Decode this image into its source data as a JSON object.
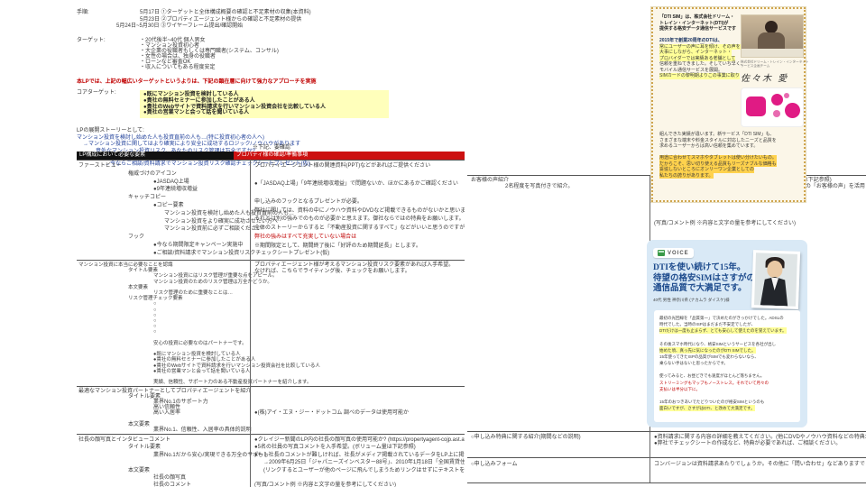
{
  "brief": {
    "schedule_label": "手順:",
    "schedule": [
      {
        "t": "5月17日 ①ターゲットと全体構成概要の確認と不足素材の収集(本資料)"
      },
      {
        "t": "5月23日 ②プロパティエージェント様からの確認と不足素材の提供"
      },
      {
        "t": "5月24日~5月30日 ③ワイヤーフレーム提出/確認開始",
        "c": "neg"
      }
    ],
    "target_label": "ターゲット:",
    "targets": [
      {
        "t": "・20代後半~40代 個人男女"
      },
      {
        "t": "・マンション投資初心者"
      },
      {
        "t": "・大企業の役職者もしくは専門職者(システム、コンサル)"
      },
      {
        "t": "・女性の場合は、独身の役職者"
      },
      {
        "t": "・ローンなど審査OK"
      },
      {
        "t": "・収入についてもある程度安定"
      }
    ],
    "warning": "本LPでは、上記の幅広いターゲットというよりは、下記の顕在層に向けて強力なアプローチを実施",
    "core_target_label": "コアターゲット:",
    "core_targets": [
      {
        "t": "●既にマンション投資を検討している人",
        "c": "b"
      },
      {
        "t": "●貴社の無料セミナーに参加したことがある人",
        "c": "b"
      },
      {
        "t": "●貴社のWebサイトで資料請求を行いマンション投資会社を比較している人",
        "c": "b"
      },
      {
        "t": "●貴社の営業マンと会って話を聞いている人",
        "c": "b"
      }
    ],
    "story_label": "LPの展開ストーリーとして:",
    "story": [
      {
        "t": "マンション投資を検討し始めた人も投資直前の人も…(特に投資初心者の人へ)",
        "c": "bl"
      },
      {
        "t": "→マンション投資に関してはより確実により安全に成功するロジック/ノウハウがあります",
        "c": "bl k1"
      },
      {
        "t": "→意外なマンション投資リスク、あなたのリスク管理は万全ですか?",
        "c": "bl k2"
      },
      {
        "t": "→リスクを最小限にするために/再確認するためにマンション投資前にプロパティエージェントにご相談/資料請求を",
        "c": "r k3"
      },
      {
        "t": "→今ならご相談/資料請求でマンション投資リスク確認チェックシートプレゼント(仮)",
        "c": "bl k4"
      }
    ]
  },
  "left_table": {
    "note": "※下記、要確認",
    "header": {
      "left": "LP構成において必要な要素",
      "right": "プロパティ様の確認/準備事項"
    },
    "rows": [
      {
        "left": [
          {
            "t": "ファーストビュー"
          },
          {
            "t": "権威づけのアイコン",
            "c": "i1"
          },
          {
            "t": "●JASDAQ上場",
            "c": "i2"
          },
          {
            "t": "●9年連続増収増益",
            "c": "i2"
          },
          {
            "t": "キャッチコピー",
            "c": "i1"
          },
          {
            "t": "●コピー要素",
            "c": "i2"
          },
          {
            "t": "マンション投資を検討し始めた人も投資直前の人も…",
            "c": "i3"
          },
          {
            "t": "マンション投資をより確実に成功させたい方へ",
            "c": "i3"
          },
          {
            "t": "マンション投資前に必ずご相談ください",
            "c": "i3"
          },
          {
            "t": "フック",
            "c": "i1"
          },
          {
            "t": "●今なら期間限定キャンペーン実施中",
            "c": "i2"
          },
          {
            "t": "●ご相談/資料請求でマンション投資リスクチェックシートプレゼント(仮)",
            "c": "i2"
          }
        ],
        "right": [
          {
            "t": "プロパティエージェント様の関連資料(PPT)などがあればご提供ください"
          },
          {
            "t": ""
          },
          {
            "t": "●「JASDAQ上場」「9年連続増収増益」で問題ないか、ほかにあるかご確認ください"
          },
          {
            "t": ""
          },
          {
            "t": "申し込みのフックとなるプレゼントが必要。"
          },
          {
            "t": "弊社に関しては、資料の中にノウハウ資料やDVDなど掲載できるものがないかと思いますが、"
          },
          {
            "t": "それとは別の強みでのものが必要かと思えます。御社ならではの特典をお願いします。"
          },
          {
            "t": "全体のストーリーからすると「不動産投資に関するすべて」などがいいと思うのですが…"
          },
          {
            "t": "弊社の強みはすべて充実していない場合は",
            "c": "r"
          },
          {
            "t": "※期間限定として、期間終了後に「好評のため期間延長」とします。"
          }
        ]
      },
      {
        "left": [
          {
            "t": "マンション投資に本当に必要なことを認識"
          },
          {
            "t": "タイトル要素",
            "c": "i1"
          },
          {
            "t": "マンション投資にはリスク管理が重要な点をアピール。",
            "c": "i2"
          },
          {
            "t": "マンション投資のためのリスク管理は万全かどうか。",
            "c": "i2"
          },
          {
            "t": "本文要素",
            "c": "i1"
          },
          {
            "t": "リスク管理のために重要なことは…",
            "c": "i2"
          },
          {
            "t": "リスク管理チェック要素",
            "c": "i1"
          },
          {
            "t": "○",
            "c": "i2"
          },
          {
            "t": "○",
            "c": "i2"
          },
          {
            "t": "○",
            "c": "i2"
          },
          {
            "t": "○",
            "c": "i2"
          },
          {
            "t": "○",
            "c": "i2"
          },
          {
            "t": "○",
            "c": "i2"
          },
          {
            "t": ""
          },
          {
            "t": "安心の投資に必要なのはパートナーです。",
            "c": "i2"
          },
          {
            "t": ""
          },
          {
            "t": "●既にマンション投資を検討している人",
            "c": "i2"
          },
          {
            "t": "●貴社の無料セミナーに参加したことがある人",
            "c": "i2"
          },
          {
            "t": "●貴社のWebサイトで資料請求を行いマンション投資会社を比較している人",
            "c": "i2"
          },
          {
            "t": "●貴社の営業マンと会って話を聞いている人",
            "c": "i2"
          },
          {
            "t": ""
          },
          {
            "t": "実績、信頼性、サポート力のある不動産投資パートナーを紹介します。",
            "c": "i2"
          }
        ],
        "right": [
          {
            "t": "プロパティエージェント様が考えるマンション投資リスク要素があれば入手希望。"
          },
          {
            "t": "なければ、こちらでライティング後、チェックをお願いします。"
          }
        ]
      },
      {
        "left": [
          {
            "t": "最適なマンション投資パートナーとしてプロパティエージェントを紹介"
          },
          {
            "t": "タイトル要素",
            "c": "i1"
          },
          {
            "t": "業界No.1のサポート力",
            "c": "i2"
          },
          {
            "t": "高い信頼性",
            "c": "i2"
          },
          {
            "t": "高い入居率",
            "c": "i2"
          },
          {
            "t": ""
          },
          {
            "t": "本文要素",
            "c": "i1"
          },
          {
            "t": "業界No.1、信頼性、入居率の具体的説明",
            "c": "i2"
          }
        ],
        "right": [
          {
            "t": "●(株)アイ・エヌ・ジー・ドットコム 調べのデータは使用可能か"
          }
        ]
      },
      {
        "left": [
          {
            "t": "社長の顔写真とインタビューコメント"
          },
          {
            "t": "タイトル要素",
            "c": "i1"
          },
          {
            "t": "業界No.1だから安心/実現できる万全のサポート",
            "c": "i2"
          },
          {
            "t": ""
          },
          {
            "t": "本文要素",
            "c": "i1"
          },
          {
            "t": "社長の顔写真",
            "c": "i2"
          },
          {
            "t": "社長のコメント",
            "c": "i2"
          }
        ],
        "right": [
          {
            "t": "●クレイジー新聞のLP内の社長の顔写真の使用可能か? (https://propertyagent-cojp.ast.atcons.jp/lp/)"
          },
          {
            "t": "●5名の社員の写真コメントを入手希望。(ボリューム量は下記参照)"
          },
          {
            "t": "●もし社長のコメントが難しければ、社長がメディア掲載されているデータをLP上に掲載可能かどうか。"
          },
          {
            "t": "→2009年6月25日「ジャパニーズインベスター88号」、2010年1月18日「全国賃貸住宅新聞」の記事",
            "c": "j1"
          },
          {
            "t": "(リンクするとユーザーが他のページに飛んでしまうためリンクはせずにテキストを引用したり掲載面を)",
            "c": "j1"
          },
          {
            "t": ""
          },
          {
            "t": "(写真/コメント例 ※内容と文字の量を参考にしてください)"
          }
        ]
      }
    ]
  },
  "right_table": {
    "voice_row": {
      "left": [
        {
          "t": "お客様の声紹介"
        },
        {
          "t": "2名程度を写真付きで紹介。",
          "c": "m1"
        }
      ],
      "right": [
        {
          "t": "●2名程度のお客様の声を写真付きで入手希望。(ボリューム量は下記参照)"
        },
        {
          "t": "●下記が難しければ、Webサイトに掲載されているvol.1~vol.40の「お客様の声」を活用したいのですが、"
        },
        {
          "t": "→写真/コメントとも活用できますか?",
          "c": "j1"
        },
        {
          "t": "→コメントを削除したりするなどの変更は可能ですか?",
          "c": "j1"
        },
        {
          "t": "(写真/コメント例 ※内容と文字の量を参考にしてください)",
          "c": "gap"
        }
      ]
    },
    "privilege_row": {
      "left": [
        {
          "t": "○申し込み特典に関する紹介(期間などの説明)"
        }
      ],
      "right": [
        {
          "t": "●資料請求に関する内容の詳細を教えてください。(他にDVDやノウハウ資料などの特典があれば記載)"
        },
        {
          "t": "●弊社でチェックシートの作成など、特典が必要であれば、ご相談ください。"
        }
      ]
    },
    "form_row": {
      "left": [
        {
          "t": "○申し込みフォーム"
        }
      ],
      "right": [
        {
          "t": "コンバージョンは資料請求あたりでしょうか。その他に「問い合わせ」などありますでしょうか。"
        }
      ]
    }
  },
  "yellow_example": {
    "intro": [
      {
        "t": "「DTI SIM」は、株式会社ドリーム・",
        "c": "b"
      },
      {
        "t": "トレイン・インターネット(DTI)が",
        "c": "b"
      },
      {
        "t": "提供する格安データ通信サービスです",
        "c": "b"
      },
      {
        "t": ""
      },
      {
        "t": "2015年で創業20周年のDTIは、",
        "c": "nb"
      },
      {
        "t": "常にユーザーの声に耳を傾け、その声を",
        "c": "hl"
      },
      {
        "t": "大事にしながら、インターネット・",
        "c": "hl"
      },
      {
        "t": "プロバイダーでは実績ある老舗として",
        "c": "hl"
      },
      {
        "t": "信頼を重ねてきました。そしていち早く、"
      },
      {
        "t": "モバイル通信サービスを展開。"
      },
      {
        "t": "SIMカードの黎明期よりこの事業に取り",
        "c": "hl"
      }
    ],
    "photo_caption_1": "株式会社ドリーム・トレイン・インターネット",
    "photo_caption_2": "サービス企画チーム",
    "signature": "佐々木 愛",
    "body": [
      {
        "t": "組んできた実績が違います。新サービス「DTI SIM」も、"
      },
      {
        "t": "さまざまな端末や料金スタイルに対応したニーズと品質を"
      },
      {
        "t": "求めるユーザーからは高い信頼を集めています。"
      },
      {
        "t": ""
      },
      {
        "t": "用途に合わせてスマホやタブレットは使い分けたいもの。",
        "c": "hlo"
      },
      {
        "t": "だからこそ、思い切り使える品質もリーズナブルな価格も",
        "c": "hlo"
      },
      {
        "t": "妥協しないところにオンリーワン企業としての",
        "c": "hlo"
      },
      {
        "t": "私たちの誇りがあります。",
        "c": "hlo"
      }
    ]
  },
  "voice_example": {
    "tab": "VOICE",
    "title_1": "DTIを使い続けて15年。",
    "title_2": "待望の格安SIMはさすがの",
    "title_3": "通信品質で大満足です。",
    "customer": "40代 男性 神奈川県 (ナカムラ ダイスケ)様",
    "body": [
      {
        "t": "最初の光回線を「品質第一」で決めたのがきっかけでした。ADSLの"
      },
      {
        "t": "時代でした。当時のISPはまだまだ不安定でしたが、"
      },
      {
        "t": "DTIだけは一度も止まらず、とても安心して使えたのを覚えています。",
        "c": "hl"
      },
      {
        "t": ""
      },
      {
        "t": "その後スマホ時代になり、格安SIMというサービスを各社が出し"
      },
      {
        "t": "始めた頃、真っ先に気になったのがDTI SIMでした。",
        "c": "hl"
      },
      {
        "t": "15年使ってきたISPの品質がSIMでも変わらないなら、"
      },
      {
        "t": "乗らない手はないと思ったからです。"
      },
      {
        "t": ""
      },
      {
        "t": "使ってみると、お昼どきでも速度がほとんど落ちません。"
      },
      {
        "t": "ストリーミングもマップもノーストレス。それでいて月々の",
        "c": "r"
      },
      {
        "t": "支払いは半分以下に。",
        "c": "r"
      },
      {
        "t": ""
      },
      {
        "t": "15年のおつきあいでたどりついたのが格安SIMというのも"
      },
      {
        "t": "面白いですが、さすがはDTI、と改めて大満足です。",
        "c": "hl"
      }
    ]
  }
}
